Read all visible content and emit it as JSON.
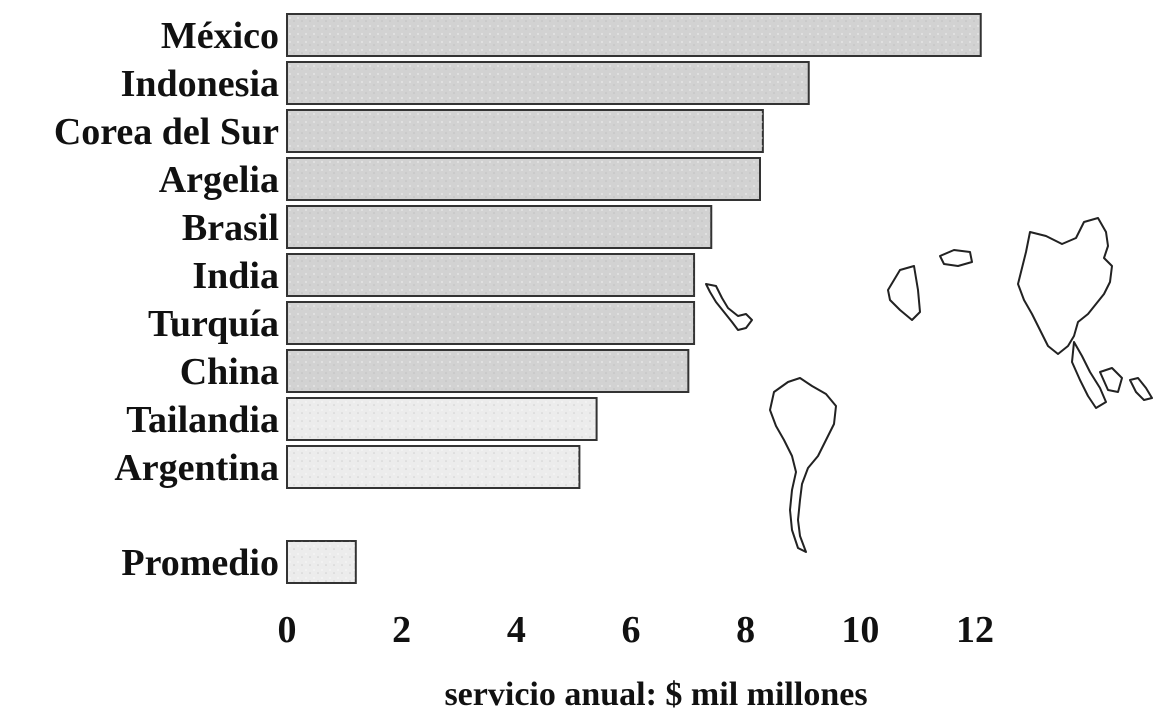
{
  "chart_data": {
    "type": "bar",
    "orientation": "horizontal",
    "categories": [
      "México",
      "Indonesia",
      "Corea del Sur",
      "Argelia",
      "Brasil",
      "India",
      "Turquía",
      "China",
      "Tailandia",
      "Argentina",
      "Promedio"
    ],
    "values": [
      12.1,
      9.1,
      8.3,
      8.25,
      7.4,
      7.1,
      7.1,
      7.0,
      5.4,
      5.1,
      1.2
    ],
    "xlabel": "servicio anual: $ mil millones",
    "xlim": [
      0,
      12.5
    ],
    "xticks": [
      0,
      2,
      4,
      6,
      8,
      10,
      12
    ],
    "grid": false,
    "legend": "none",
    "colors": {
      "bar_fill_dark": "#d2d2d2",
      "bar_fill_light": "#ececec",
      "bar_stroke": "#333333",
      "text": "#111111"
    }
  },
  "map": {
    "icon": "world-map-regions-icon"
  }
}
